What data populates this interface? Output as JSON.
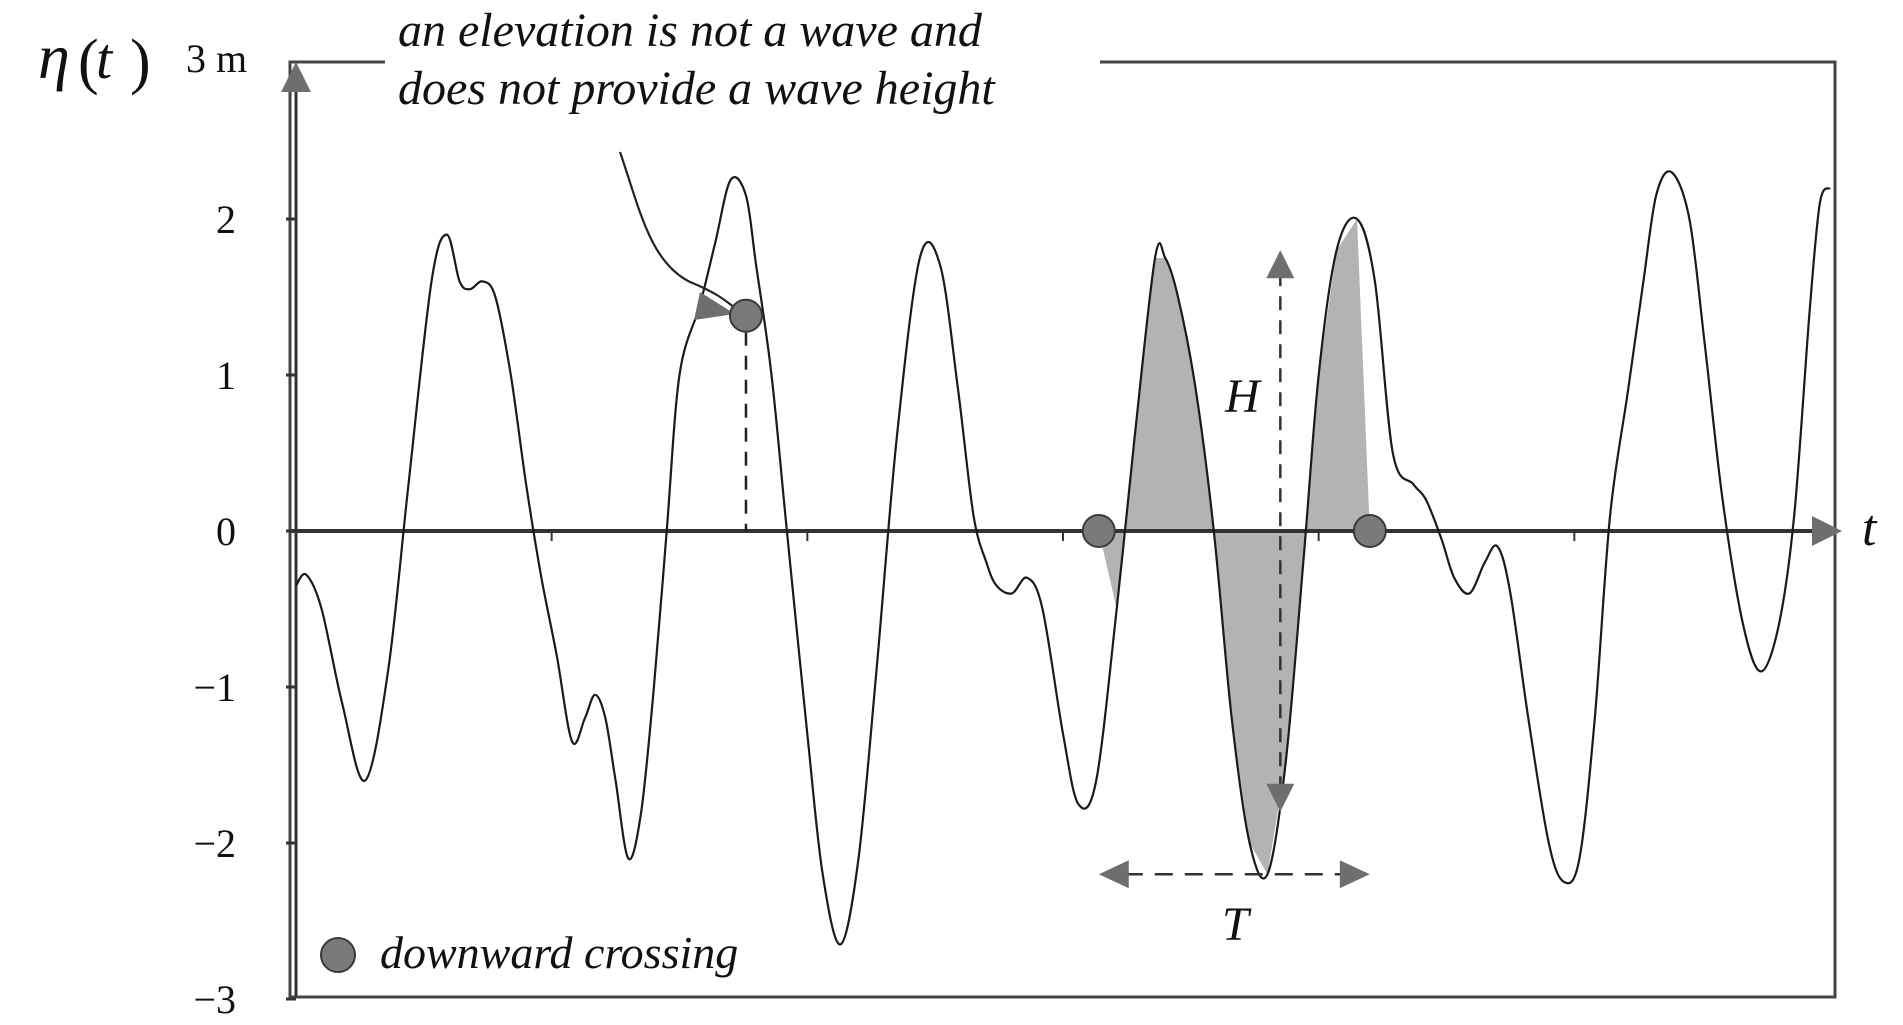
{
  "chart_data": {
    "type": "line",
    "ylabel_symbol": "η",
    "ylabel_arg": "t",
    "ylabel_unit": "3 m",
    "xlabel": "t",
    "xlim": [
      0,
      60
    ],
    "ylim": [
      -3,
      3
    ],
    "yticks": [
      {
        "value": 2,
        "label": "2"
      },
      {
        "value": 1,
        "label": "1"
      },
      {
        "value": 0,
        "label": "0"
      },
      {
        "value": -1,
        "label": "−1"
      },
      {
        "value": -2,
        "label": "−2"
      },
      {
        "value": -3,
        "label": "−3"
      }
    ],
    "xticks": [
      10,
      20,
      30,
      40,
      50
    ],
    "series": [
      {
        "x": [
          0,
          0.4,
          1,
          1.8,
          2.7,
          3.6,
          4.4,
          5.3,
          5.9,
          6.4,
          6.8,
          7.3,
          7.8,
          8.4,
          9.0,
          9.6,
          10.2,
          10.8,
          11.3,
          11.7,
          12.1,
          12.5,
          13.0,
          13.5,
          14.0,
          14.5,
          15.0,
          15.8,
          16.4,
          17.0,
          17.6,
          18.0,
          18.6,
          19.2,
          20.0,
          20.6,
          21.3,
          22.0,
          22.7,
          23.5,
          24.4,
          25.2,
          25.9,
          26.5,
          27.0,
          27.4,
          28.0,
          28.6,
          29.2,
          30.0,
          30.6,
          31.3,
          32.1,
          32.8,
          33.6,
          34.0,
          34.5,
          35.2,
          35.9,
          36.6,
          37.3,
          38.0,
          38.7,
          39.4,
          40.0,
          40.7,
          41.5,
          42.2,
          42.9,
          43.7,
          44.2,
          44.8,
          45.3,
          45.9,
          46.5,
          47.0,
          47.5,
          48.2,
          49.0,
          49.6,
          50.2,
          50.8,
          51.4,
          52.1,
          52.7,
          53.2,
          53.8,
          54.5,
          55.1,
          55.8,
          56.6,
          57.3,
          58.0,
          58.6,
          59.2,
          59.6,
          60.0
        ],
        "y": [
          -0.35,
          -0.28,
          -0.5,
          -1.1,
          -1.6,
          -0.9,
          0.3,
          1.6,
          1.9,
          1.6,
          1.55,
          1.6,
          1.5,
          1.0,
          0.3,
          -0.3,
          -0.8,
          -1.35,
          -1.2,
          -1.05,
          -1.2,
          -1.6,
          -2.1,
          -1.8,
          -1.0,
          0.0,
          1.0,
          1.45,
          1.85,
          2.25,
          2.15,
          1.7,
          1.0,
          0.0,
          -1.3,
          -2.2,
          -2.65,
          -2.1,
          -0.9,
          0.6,
          1.75,
          1.7,
          0.9,
          0.1,
          -0.2,
          -0.35,
          -0.4,
          -0.3,
          -0.5,
          -1.3,
          -1.75,
          -1.6,
          -0.5,
          0.6,
          1.75,
          1.75,
          1.5,
          0.9,
          0.0,
          -1.2,
          -2.0,
          -2.2,
          -1.5,
          -0.2,
          1.0,
          1.8,
          2.0,
          1.6,
          0.5,
          0.3,
          0.2,
          -0.05,
          -0.3,
          -0.4,
          -0.2,
          -0.1,
          -0.4,
          -1.2,
          -2.0,
          -2.25,
          -2.1,
          -1.2,
          0.1,
          0.9,
          1.6,
          2.15,
          2.3,
          2.0,
          1.2,
          0.2,
          -0.6,
          -0.9,
          -0.6,
          0.1,
          1.4,
          2.1,
          2.2
        ]
      }
    ],
    "crossings": [
      {
        "x": 17.6,
        "y": 1.38
      },
      {
        "x": 31.4,
        "y": 0
      },
      {
        "x": 42.0,
        "y": 0
      }
    ],
    "wave_shading": {
      "x_start": 31.4,
      "x_end": 42.0
    },
    "annotations": {
      "elevation_note_line1": "an elevation is not a wave and",
      "elevation_note_line2": "does not provide a wave height",
      "height_label": "H",
      "period_label": "T",
      "legend_label": "downward crossing"
    },
    "height_arrow": {
      "x": 38.5,
      "y_top": 1.8,
      "y_bottom": -1.8
    },
    "period_arrow": {
      "x_start": 31.4,
      "x_end": 42.0,
      "y": -2.2
    },
    "colors": {
      "line": "#1a1a1a",
      "axis": "#333333",
      "marker": "#7a7a7a",
      "marker_stroke": "#3a3a3a",
      "shade": "#b3b3b3",
      "arrow": "#6e6e6e"
    }
  }
}
